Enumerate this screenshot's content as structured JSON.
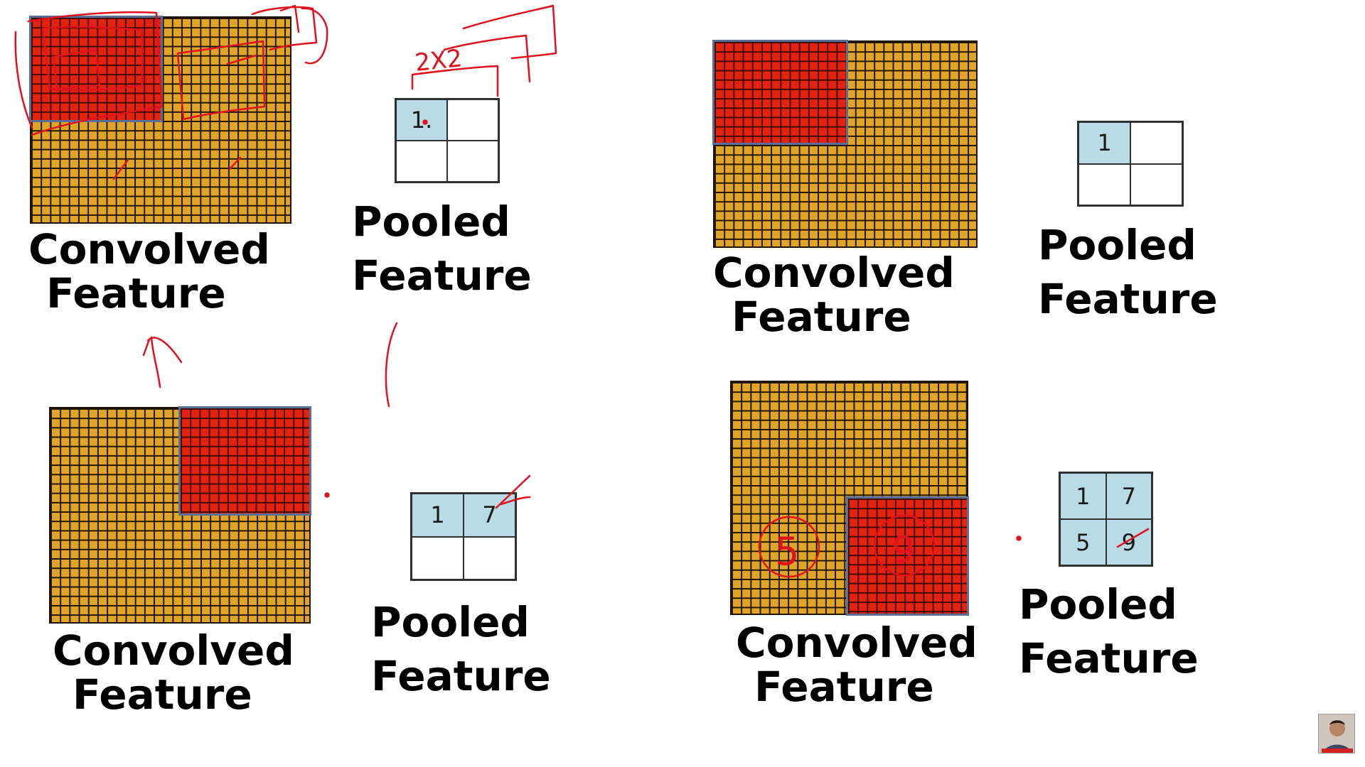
{
  "panels": [
    {
      "id": "top-left",
      "convolved_label": [
        "Convolved",
        "Feature"
      ],
      "pooled_label": [
        "Pooled",
        "Feature"
      ],
      "pooled_values": [
        "1.",
        "",
        "",
        ""
      ],
      "highlight_quadrant": "top-left",
      "annotation": "2X2"
    },
    {
      "id": "top-right",
      "convolved_label": [
        "Convolved",
        "Feature"
      ],
      "pooled_label": [
        "Pooled",
        "Feature"
      ],
      "pooled_values": [
        "1",
        "",
        "",
        ""
      ],
      "highlight_quadrant": "top-left"
    },
    {
      "id": "bottom-left",
      "convolved_label": [
        "Convolved",
        "Feature"
      ],
      "pooled_label": [
        "Pooled",
        "Feature"
      ],
      "pooled_values": [
        "1",
        "7",
        "",
        ""
      ],
      "highlight_quadrant": "top-right"
    },
    {
      "id": "bottom-right",
      "convolved_label": [
        "Convolved",
        "Feature"
      ],
      "pooled_label": [
        "Pooled",
        "Feature"
      ],
      "pooled_values": [
        "1",
        "7",
        "5",
        "9"
      ],
      "highlight_quadrant": "bottom-right",
      "annotations": [
        "5",
        "9"
      ]
    }
  ],
  "colors": {
    "grid_fill": "#e0a524",
    "highlight_fill": "#e5220e",
    "pool_filled_cell": "#b9dbe6",
    "ink": "#e0121e"
  }
}
